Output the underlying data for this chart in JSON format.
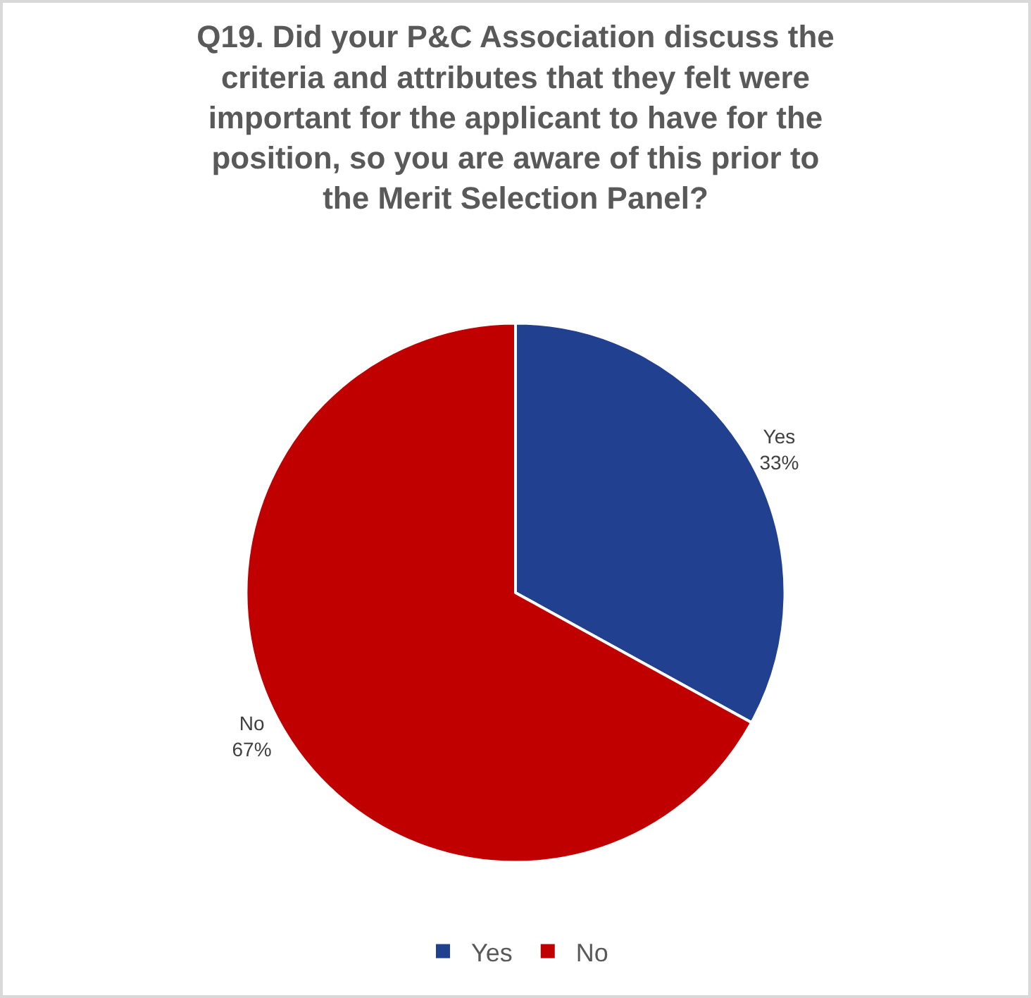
{
  "chart_data": {
    "type": "pie",
    "title": "Q19. Did your P&C Association discuss the criteria and attributes that they felt were important for the applicant to have for the position, so you are aware of this prior to the Merit Selection Panel?",
    "categories": [
      "Yes",
      "No"
    ],
    "values": [
      33,
      67
    ],
    "colors": [
      "#21408f",
      "#c00000"
    ],
    "value_labels": [
      "33%",
      "67%"
    ],
    "legend": "bottom"
  }
}
